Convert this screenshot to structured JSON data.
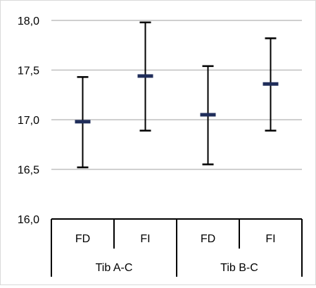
{
  "chart_data": {
    "type": "error-bar",
    "title": "",
    "xlabel": "",
    "ylabel": "",
    "ylim": [
      16.0,
      18.0
    ],
    "y_ticks": [
      16.0,
      16.5,
      17.0,
      17.5,
      18.0
    ],
    "y_tick_labels": [
      "16,0",
      "16,5",
      "17,0",
      "17,5",
      "18,0"
    ],
    "grid": true,
    "groups": [
      {
        "label": "Tib A-C",
        "categories": [
          "FD",
          "FI"
        ]
      },
      {
        "label": "Tib B-C",
        "categories": [
          "FD",
          "FI"
        ]
      }
    ],
    "points": [
      {
        "group": "Tib A-C",
        "category": "FD",
        "mean": 16.98,
        "low": 16.52,
        "high": 17.43
      },
      {
        "group": "Tib A-C",
        "category": "FI",
        "mean": 17.44,
        "low": 16.89,
        "high": 17.98
      },
      {
        "group": "Tib B-C",
        "category": "FD",
        "mean": 17.05,
        "low": 16.55,
        "high": 17.54
      },
      {
        "group": "Tib B-C",
        "category": "FI",
        "mean": 17.36,
        "low": 16.89,
        "high": 17.82
      }
    ],
    "colors": {
      "whisker": "#000000",
      "mean_marker": "#1f2d5a",
      "grid": "#bfbfbf",
      "axis": "#000000"
    }
  }
}
